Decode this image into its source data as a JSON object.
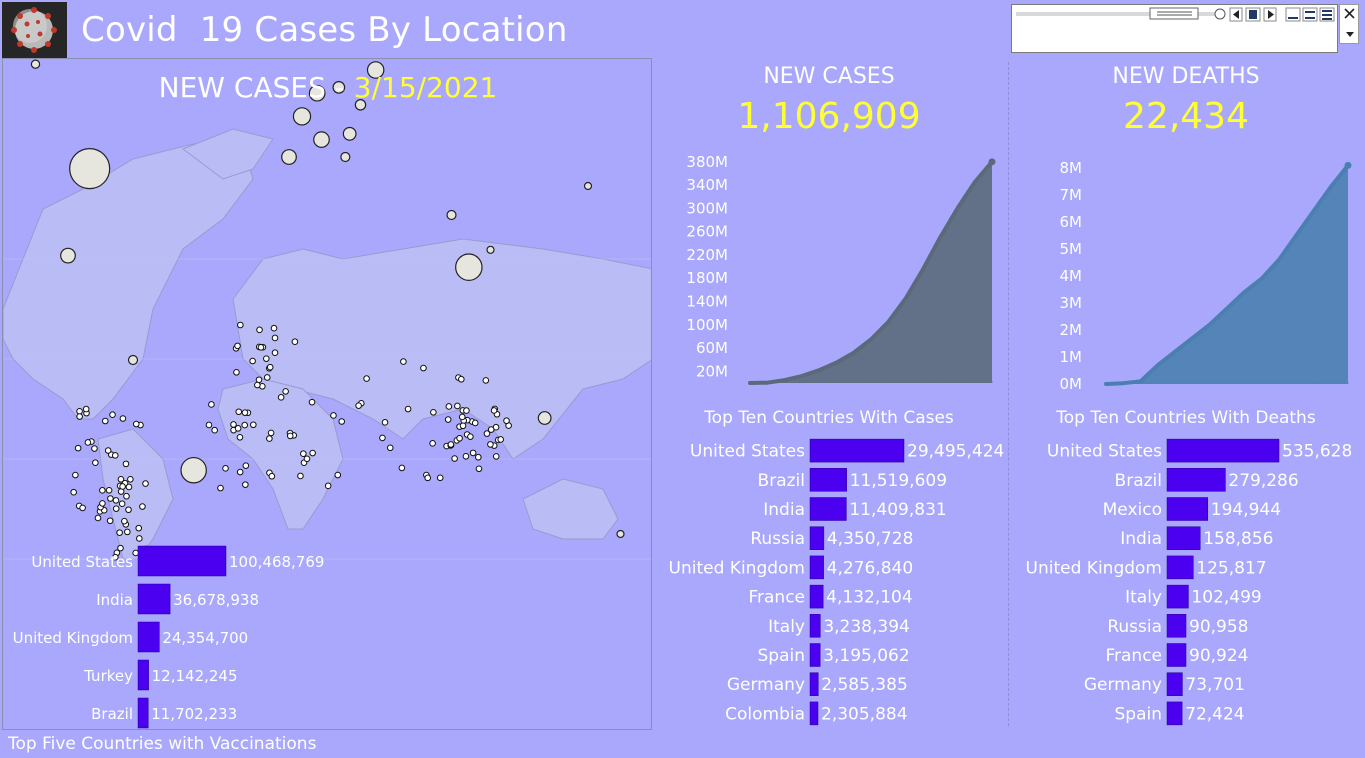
{
  "header": {
    "title": "Covid  19 Cases By Location",
    "logo_icon": "coronavirus-icon"
  },
  "map_panel": {
    "title_prefix": "NEW CASES",
    "title_separator": " - ",
    "title_date": "3/15/2021"
  },
  "kpis": {
    "cases_title": "NEW CASES",
    "cases_value": "1,106,909",
    "deaths_title": "NEW DEATHS",
    "deaths_value": "22,434"
  },
  "colors": {
    "background": "#a9a8fc",
    "bar": "#4b00f0",
    "cases_area": "#5a6a7a",
    "deaths_area": "#4a7fb0",
    "highlight": "#ffff33"
  },
  "chart_data": [
    {
      "type": "area",
      "title": "",
      "yticks": [
        "20M",
        "60M",
        "100M",
        "140M",
        "180M",
        "220M",
        "260M",
        "300M",
        "340M",
        "380M"
      ],
      "ylim": [
        0,
        390000000
      ],
      "x": [
        0,
        1,
        2,
        3,
        4,
        5,
        6,
        7,
        8,
        9,
        10,
        11,
        12,
        13,
        14
      ],
      "values": [
        0,
        500000,
        5000000,
        12000000,
        22000000,
        35000000,
        52000000,
        75000000,
        105000000,
        145000000,
        195000000,
        250000000,
        300000000,
        345000000,
        380000000
      ],
      "grid": false
    },
    {
      "type": "area",
      "title": "",
      "yticks": [
        "0M",
        "1M",
        "2M",
        "3M",
        "4M",
        "5M",
        "6M",
        "7M",
        "8M"
      ],
      "ylim": [
        0,
        8300000
      ],
      "x": [
        0,
        1,
        2,
        3,
        4,
        5,
        6,
        7,
        8,
        9,
        10,
        11,
        12,
        13,
        14
      ],
      "values": [
        0,
        30000,
        100000,
        700000,
        1200000,
        1700000,
        2200000,
        2800000,
        3400000,
        3900000,
        4600000,
        5500000,
        6400000,
        7300000,
        8100000
      ],
      "grid": false
    },
    {
      "type": "bar",
      "title": "Top Ten Countries With Cases",
      "categories": [
        "United States",
        "Brazil",
        "India",
        "Russia",
        "United Kingdom",
        "France",
        "Italy",
        "Spain",
        "Germany",
        "Colombia"
      ],
      "values": [
        29495424,
        11519609,
        11409831,
        4350728,
        4276840,
        4132104,
        3238394,
        3195062,
        2585385,
        2305884
      ],
      "labels": [
        "29,495,424",
        "11,519,609",
        "11,409,831",
        "4,350,728",
        "4,276,840",
        "4,132,104",
        "3,238,394",
        "3,195,062",
        "2,585,385",
        "2,305,884"
      ]
    },
    {
      "type": "bar",
      "title": "Top Ten Countries With Deaths",
      "categories": [
        "United States",
        "Brazil",
        "Mexico",
        "India",
        "United Kingdom",
        "Italy",
        "Russia",
        "France",
        "Germany",
        "Spain"
      ],
      "values": [
        535628,
        279286,
        194944,
        158856,
        125817,
        102499,
        90958,
        90924,
        73701,
        72424
      ],
      "labels": [
        "535,628",
        "279,286",
        "194,944",
        "158,856",
        "125,817",
        "102,499",
        "90,958",
        "90,924",
        "73,701",
        "72,424"
      ]
    },
    {
      "type": "bar",
      "title": "Top Five Countries with Vaccinations",
      "categories": [
        "United States",
        "India",
        "United Kingdom",
        "Turkey",
        "Brazil"
      ],
      "values": [
        100468769,
        36678938,
        24354700,
        12142245,
        11702233
      ],
      "labels": [
        "100,468,769",
        "36,678,938",
        "24,354,700",
        "12,142,245",
        "11,702,233"
      ]
    },
    {
      "type": "scatter",
      "title": "",
      "description_kind": "proportional-bubble-map",
      "x_lon": [
        -95,
        -105,
        80,
        -47,
        37,
        3,
        12,
        -3,
        10,
        20,
        30,
        72,
        25,
        -75,
        90,
        150,
        -120,
        135,
        23,
        115
      ],
      "y_lat": [
        38,
        23,
        21,
        -14,
        55,
        47,
        43,
        40,
        51,
        52,
        49,
        30,
        44,
        5,
        24,
        -25,
        56,
        35,
        40,
        -5
      ],
      "values": [
        60000,
        8000,
        26000,
        24000,
        10000,
        11000,
        9000,
        8000,
        9000,
        5000,
        4000,
        3000,
        6000,
        3000,
        800,
        40,
        2500,
        1500,
        3000,
        6000
      ]
    }
  ]
}
